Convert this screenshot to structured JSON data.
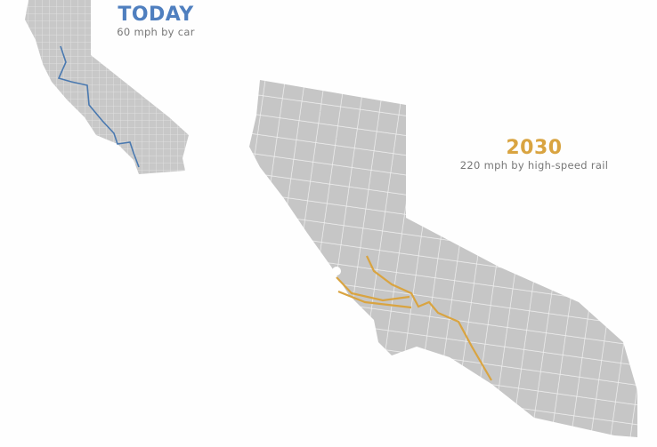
{
  "today": {
    "title": "TODAY",
    "subtitle": "60 mph by car"
  },
  "future": {
    "title": "2030",
    "subtitle": "220 mph by high-speed rail"
  }
}
